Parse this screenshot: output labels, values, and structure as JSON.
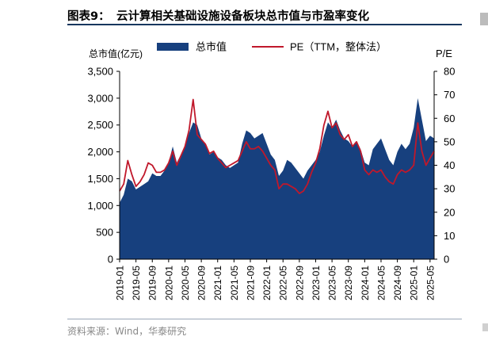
{
  "header": {
    "figure_label": "图表9：",
    "title": "云计算相关基础设施设备板块总市值与市盈率变化"
  },
  "footer": {
    "source": "资料来源：Wind，华泰研究"
  },
  "colors": {
    "area": "#17407e",
    "line": "#c0182b",
    "rule": "#17375e"
  },
  "chart_data": {
    "type": "area",
    "title": "",
    "y_left_label": "总市值(亿元)",
    "y_right_label": "P/E",
    "y_left_range": [
      0,
      3500
    ],
    "y_left_ticks": [
      "0",
      "500",
      "1,000",
      "1,500",
      "2,000",
      "2,500",
      "3,000",
      "3,500"
    ],
    "y_right_range": [
      0,
      80
    ],
    "y_right_ticks": [
      "0",
      "10",
      "20",
      "30",
      "40",
      "50",
      "60",
      "70",
      "80"
    ],
    "x_ticks": [
      "2019-01",
      "2019-05",
      "2019-09",
      "2020-01",
      "2020-05",
      "2020-09",
      "2021-01",
      "2021-05",
      "2021-09",
      "2022-01",
      "2022-05",
      "2022-09",
      "2023-01",
      "2023-05",
      "2023-09",
      "2024-01",
      "2024-05",
      "2024-09",
      "2025-01",
      "2025-05"
    ],
    "x_range": [
      "2019-01",
      "2025-06"
    ],
    "legend": {
      "position": "top",
      "entries": [
        "总市值",
        "PE（TTM，整体法）"
      ]
    },
    "grid": false,
    "series": [
      {
        "name": "总市值",
        "axis": "left",
        "type": "area",
        "points": [
          [
            "2019-01",
            1050
          ],
          [
            "2019-02",
            1200
          ],
          [
            "2019-03",
            1500
          ],
          [
            "2019-04",
            1450
          ],
          [
            "2019-05",
            1300
          ],
          [
            "2019-06",
            1350
          ],
          [
            "2019-07",
            1400
          ],
          [
            "2019-08",
            1450
          ],
          [
            "2019-09",
            1600
          ],
          [
            "2019-10",
            1550
          ],
          [
            "2019-11",
            1550
          ],
          [
            "2019-12",
            1650
          ],
          [
            "2020-01",
            1800
          ],
          [
            "2020-02",
            2100
          ],
          [
            "2020-03",
            1800
          ],
          [
            "2020-04",
            1950
          ],
          [
            "2020-05",
            2100
          ],
          [
            "2020-06",
            2350
          ],
          [
            "2020-07",
            2550
          ],
          [
            "2020-08",
            2500
          ],
          [
            "2020-09",
            2250
          ],
          [
            "2020-10",
            2150
          ],
          [
            "2020-11",
            1950
          ],
          [
            "2020-12",
            2000
          ],
          [
            "2021-01",
            1900
          ],
          [
            "2021-02",
            1850
          ],
          [
            "2021-03",
            1750
          ],
          [
            "2021-04",
            1700
          ],
          [
            "2021-05",
            1750
          ],
          [
            "2021-06",
            1800
          ],
          [
            "2021-07",
            2150
          ],
          [
            "2021-08",
            2400
          ],
          [
            "2021-09",
            2350
          ],
          [
            "2021-10",
            2250
          ],
          [
            "2021-11",
            2300
          ],
          [
            "2021-12",
            2350
          ],
          [
            "2022-01",
            2150
          ],
          [
            "2022-02",
            1950
          ],
          [
            "2022-03",
            1850
          ],
          [
            "2022-04",
            1550
          ],
          [
            "2022-05",
            1650
          ],
          [
            "2022-06",
            1850
          ],
          [
            "2022-07",
            1800
          ],
          [
            "2022-08",
            1700
          ],
          [
            "2022-09",
            1600
          ],
          [
            "2022-10",
            1500
          ],
          [
            "2022-11",
            1650
          ],
          [
            "2022-12",
            1750
          ],
          [
            "2023-01",
            1850
          ],
          [
            "2023-02",
            2000
          ],
          [
            "2023-03",
            2300
          ],
          [
            "2023-04",
            2550
          ],
          [
            "2023-05",
            2450
          ],
          [
            "2023-06",
            2600
          ],
          [
            "2023-07",
            2400
          ],
          [
            "2023-08",
            2250
          ],
          [
            "2023-09",
            2200
          ],
          [
            "2023-10",
            2100
          ],
          [
            "2023-11",
            2200
          ],
          [
            "2023-12",
            2050
          ],
          [
            "2024-01",
            1800
          ],
          [
            "2024-02",
            1750
          ],
          [
            "2024-03",
            2050
          ],
          [
            "2024-04",
            2150
          ],
          [
            "2024-05",
            2250
          ],
          [
            "2024-06",
            2050
          ],
          [
            "2024-07",
            1850
          ],
          [
            "2024-08",
            1750
          ],
          [
            "2024-09",
            2000
          ],
          [
            "2024-10",
            2150
          ],
          [
            "2024-11",
            2050
          ],
          [
            "2024-12",
            2150
          ],
          [
            "2025-01",
            2450
          ],
          [
            "2025-02",
            3000
          ],
          [
            "2025-03",
            2600
          ],
          [
            "2025-04",
            2200
          ],
          [
            "2025-05",
            2300
          ],
          [
            "2025-06",
            2250
          ]
        ]
      },
      {
        "name": "PE（TTM，整体法）",
        "axis": "right",
        "type": "line",
        "points": [
          [
            "2019-01",
            29
          ],
          [
            "2019-02",
            32
          ],
          [
            "2019-03",
            42
          ],
          [
            "2019-04",
            36
          ],
          [
            "2019-05",
            31
          ],
          [
            "2019-06",
            33
          ],
          [
            "2019-07",
            36
          ],
          [
            "2019-08",
            41
          ],
          [
            "2019-09",
            40
          ],
          [
            "2019-10",
            37
          ],
          [
            "2019-11",
            37
          ],
          [
            "2019-12",
            38
          ],
          [
            "2020-01",
            41
          ],
          [
            "2020-02",
            46
          ],
          [
            "2020-03",
            40
          ],
          [
            "2020-04",
            44
          ],
          [
            "2020-05",
            48
          ],
          [
            "2020-06",
            55
          ],
          [
            "2020-07",
            68
          ],
          [
            "2020-08",
            53
          ],
          [
            "2020-09",
            51
          ],
          [
            "2020-10",
            49
          ],
          [
            "2020-11",
            45
          ],
          [
            "2020-12",
            46
          ],
          [
            "2021-01",
            43
          ],
          [
            "2021-02",
            41
          ],
          [
            "2021-03",
            39
          ],
          [
            "2021-04",
            40
          ],
          [
            "2021-05",
            41
          ],
          [
            "2021-06",
            42
          ],
          [
            "2021-07",
            46
          ],
          [
            "2021-08",
            50
          ],
          [
            "2021-09",
            47
          ],
          [
            "2021-10",
            47
          ],
          [
            "2021-11",
            48
          ],
          [
            "2021-12",
            46
          ],
          [
            "2022-01",
            43
          ],
          [
            "2022-02",
            40
          ],
          [
            "2022-03",
            38
          ],
          [
            "2022-04",
            30
          ],
          [
            "2022-05",
            32
          ],
          [
            "2022-06",
            32
          ],
          [
            "2022-07",
            31
          ],
          [
            "2022-08",
            30
          ],
          [
            "2022-09",
            28
          ],
          [
            "2022-10",
            29
          ],
          [
            "2022-11",
            32
          ],
          [
            "2022-12",
            37
          ],
          [
            "2023-01",
            41
          ],
          [
            "2023-02",
            47
          ],
          [
            "2023-03",
            57
          ],
          [
            "2023-04",
            63
          ],
          [
            "2023-05",
            56
          ],
          [
            "2023-06",
            58
          ],
          [
            "2023-07",
            53
          ],
          [
            "2023-08",
            51
          ],
          [
            "2023-09",
            53
          ],
          [
            "2023-10",
            48
          ],
          [
            "2023-11",
            50
          ],
          [
            "2023-12",
            46
          ],
          [
            "2024-01",
            38
          ],
          [
            "2024-02",
            36
          ],
          [
            "2024-03",
            38
          ],
          [
            "2024-04",
            37
          ],
          [
            "2024-05",
            38
          ],
          [
            "2024-06",
            35
          ],
          [
            "2024-07",
            33
          ],
          [
            "2024-08",
            32
          ],
          [
            "2024-09",
            36
          ],
          [
            "2024-10",
            38
          ],
          [
            "2024-11",
            37
          ],
          [
            "2024-12",
            38
          ],
          [
            "2025-01",
            40
          ],
          [
            "2025-02",
            58
          ],
          [
            "2025-03",
            46
          ],
          [
            "2025-04",
            40
          ],
          [
            "2025-05",
            43
          ],
          [
            "2025-06",
            46
          ]
        ]
      }
    ]
  }
}
